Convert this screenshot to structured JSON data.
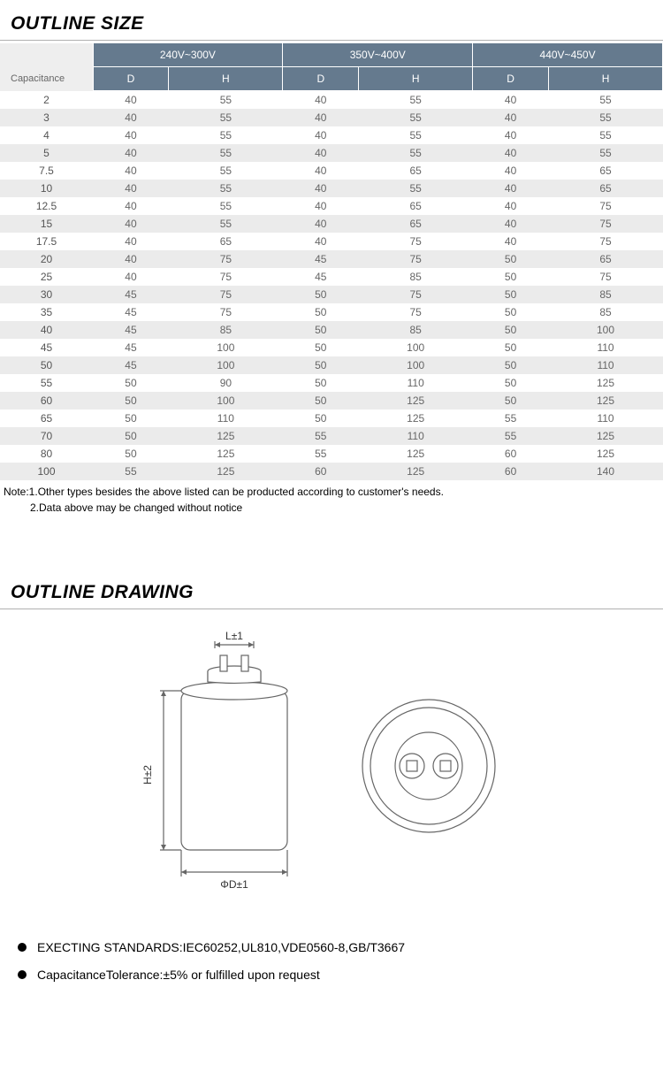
{
  "titles": {
    "outline_size": "OUTLINE SIZE",
    "outline_drawing": "OUTLINE DRAWING"
  },
  "table": {
    "capacitance_label": "Capacitance",
    "voltage_groups": [
      "240V~300V",
      "350V~400V",
      "440V~450V"
    ],
    "sub_headers": [
      "D",
      "H",
      "D",
      "H",
      "D",
      "H"
    ],
    "rows": [
      {
        "cap": "2",
        "v": [
          "40",
          "55",
          "40",
          "55",
          "40",
          "55"
        ]
      },
      {
        "cap": "3",
        "v": [
          "40",
          "55",
          "40",
          "55",
          "40",
          "55"
        ]
      },
      {
        "cap": "4",
        "v": [
          "40",
          "55",
          "40",
          "55",
          "40",
          "55"
        ]
      },
      {
        "cap": "5",
        "v": [
          "40",
          "55",
          "40",
          "55",
          "40",
          "55"
        ]
      },
      {
        "cap": "7.5",
        "v": [
          "40",
          "55",
          "40",
          "65",
          "40",
          "65"
        ]
      },
      {
        "cap": "10",
        "v": [
          "40",
          "55",
          "40",
          "55",
          "40",
          "65"
        ]
      },
      {
        "cap": "12.5",
        "v": [
          "40",
          "55",
          "40",
          "65",
          "40",
          "75"
        ]
      },
      {
        "cap": "15",
        "v": [
          "40",
          "55",
          "40",
          "65",
          "40",
          "75"
        ]
      },
      {
        "cap": "17.5",
        "v": [
          "40",
          "65",
          "40",
          "75",
          "40",
          "75"
        ]
      },
      {
        "cap": "20",
        "v": [
          "40",
          "75",
          "45",
          "75",
          "50",
          "65"
        ]
      },
      {
        "cap": "25",
        "v": [
          "40",
          "75",
          "45",
          "85",
          "50",
          "75"
        ]
      },
      {
        "cap": "30",
        "v": [
          "45",
          "75",
          "50",
          "75",
          "50",
          "85"
        ]
      },
      {
        "cap": "35",
        "v": [
          "45",
          "75",
          "50",
          "75",
          "50",
          "85"
        ]
      },
      {
        "cap": "40",
        "v": [
          "45",
          "85",
          "50",
          "85",
          "50",
          "100"
        ]
      },
      {
        "cap": "45",
        "v": [
          "45",
          "100",
          "50",
          "100",
          "50",
          "110"
        ]
      },
      {
        "cap": "50",
        "v": [
          "45",
          "100",
          "50",
          "100",
          "50",
          "110"
        ]
      },
      {
        "cap": "55",
        "v": [
          "50",
          "90",
          "50",
          "110",
          "50",
          "125"
        ]
      },
      {
        "cap": "60",
        "v": [
          "50",
          "100",
          "50",
          "125",
          "50",
          "125"
        ]
      },
      {
        "cap": "65",
        "v": [
          "50",
          "110",
          "50",
          "125",
          "55",
          "110"
        ]
      },
      {
        "cap": "70",
        "v": [
          "50",
          "125",
          "55",
          "110",
          "55",
          "125"
        ]
      },
      {
        "cap": "80",
        "v": [
          "50",
          "125",
          "55",
          "125",
          "60",
          "125"
        ]
      },
      {
        "cap": "100",
        "v": [
          "55",
          "125",
          "60",
          "125",
          "60",
          "140"
        ]
      }
    ]
  },
  "notes": {
    "line1": "Note:1.Other types besides the above listed can be producted according to customer's needs.",
    "line2": "         2.Data above may be changed without notice"
  },
  "drawing": {
    "label_L": "L±1",
    "label_H": "H±2",
    "label_D": "ΦD±1",
    "stroke": "#666666",
    "fill": "#ffffff"
  },
  "bullets": {
    "b1": "EXECTING STANDARDS:IEC60252,UL810,VDE0560-8,GB/T3667",
    "b2": "CapacitanceTolerance:±5% or fulfilled upon request"
  },
  "colors": {
    "header_bg": "#657a8e",
    "row_alt": "#ebebeb",
    "title_rule": "#b0b0b0"
  }
}
